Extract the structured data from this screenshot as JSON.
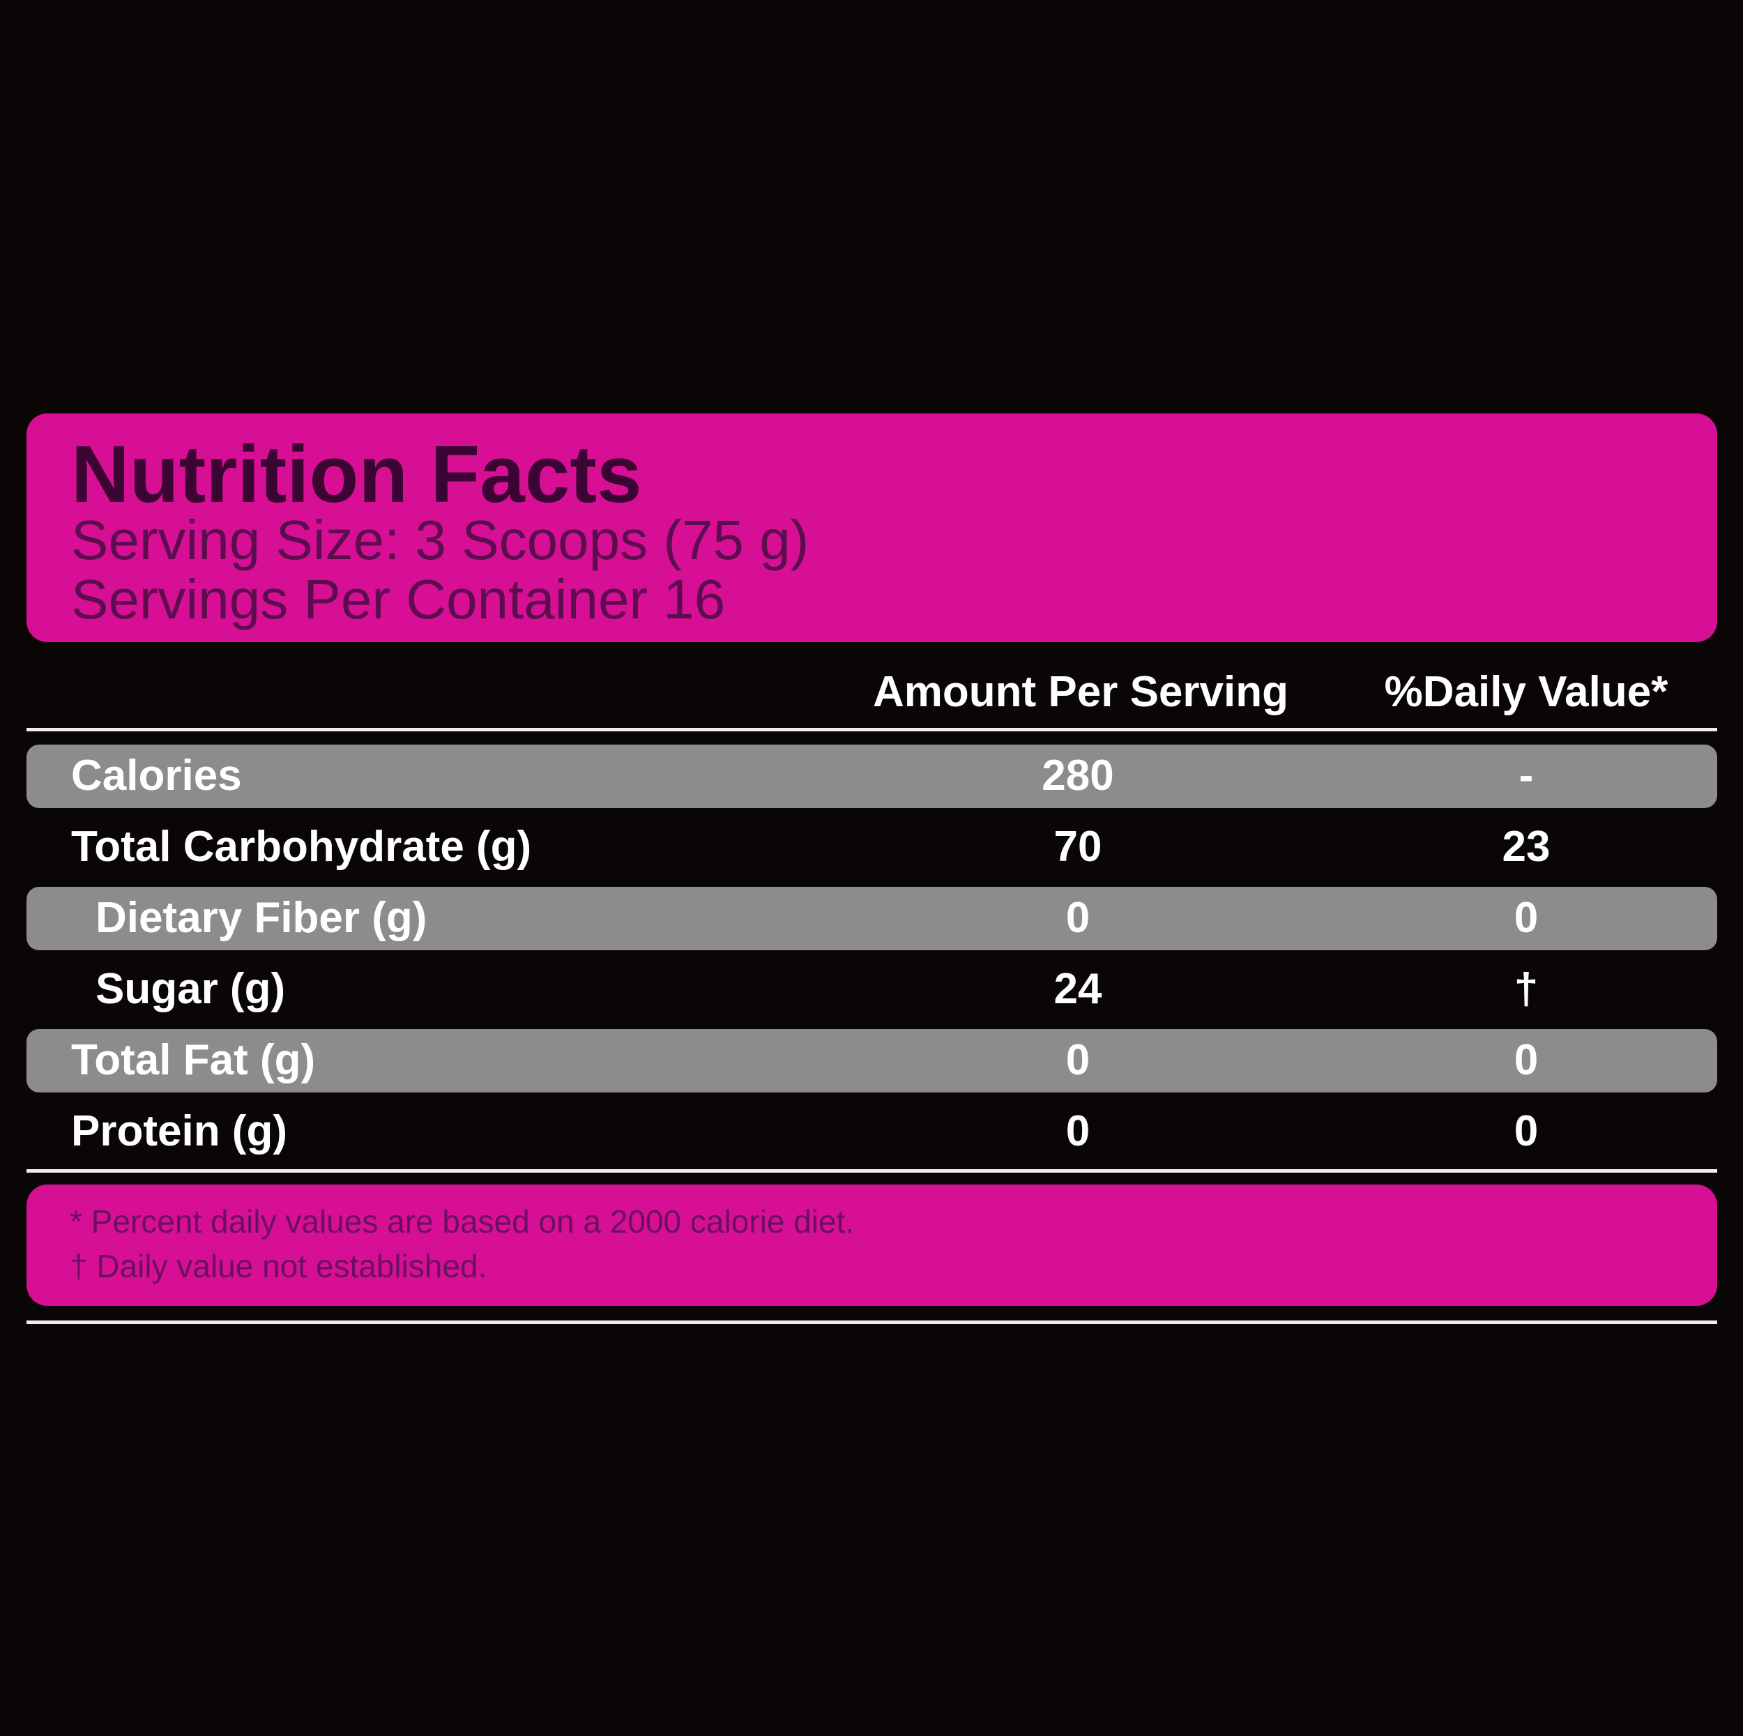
{
  "header": {
    "title": "Nutrition Facts",
    "serving_size": "Serving Size: 3 Scoops (75 g)",
    "servings": "Servings Per Container 16"
  },
  "table": {
    "columns": [
      "Amount Per Serving",
      "%Daily Value*"
    ],
    "rows": [
      [
        "Calories",
        "280",
        "-"
      ],
      [
        "Total Carbohydrate (g)",
        "70",
        "23"
      ],
      [
        "Dietary Fiber (g)",
        "0",
        "0"
      ],
      [
        "Sugar (g)",
        "24",
        "†"
      ],
      [
        "Total Fat (g)",
        "0",
        "0"
      ],
      [
        "Protein (g)",
        "0",
        "0"
      ]
    ]
  },
  "footnotes": [
    "* Percent daily values are based on a 2000 calorie diet.",
    "† Daily value not established."
  ]
}
